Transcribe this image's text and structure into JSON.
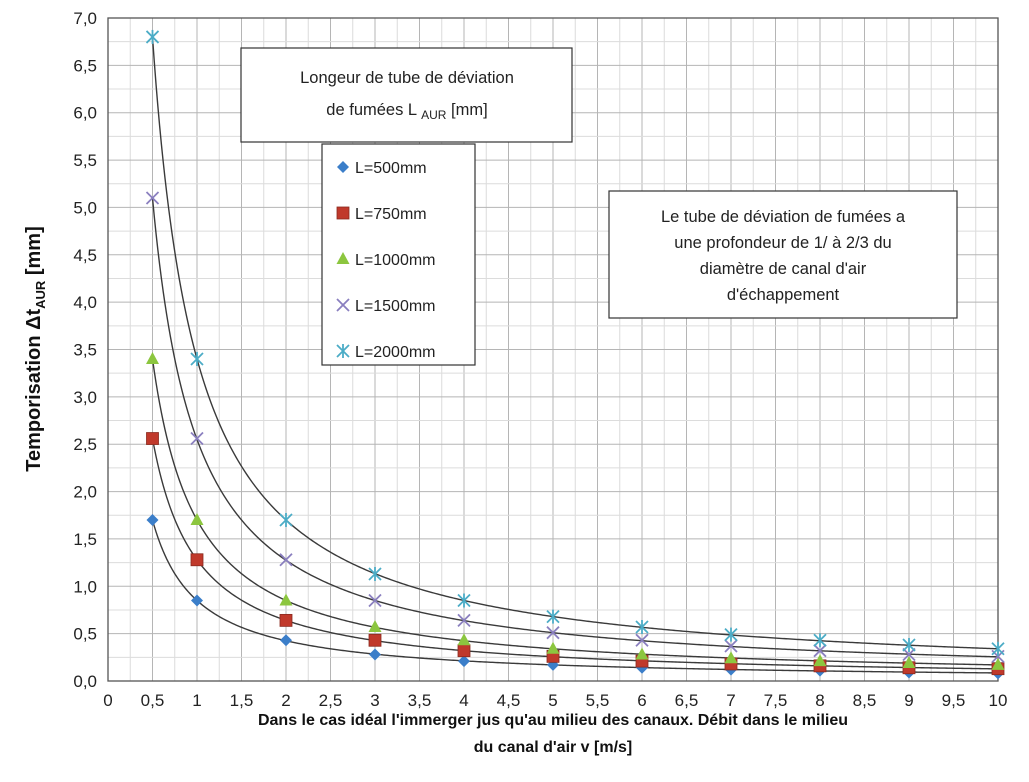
{
  "chart_data": {
    "type": "scatter",
    "xlabel_line1": "Dans le cas idéal l'immerger jus qu'au milieu des canaux. Débit dans le milieu",
    "xlabel_line2": "du canal d'air v [m/s]",
    "ylabel_main": "Temporisation  Δt",
    "ylabel_sub": "AUR",
    "ylabel_unit": " [mm]",
    "xlim": [
      0,
      10
    ],
    "ylim": [
      0,
      7
    ],
    "x_ticks": [
      "0",
      "0,5",
      "1",
      "1,5",
      "2",
      "2,5",
      "3",
      "3,5",
      "4",
      "4,5",
      "5",
      "5,5",
      "6",
      "6,5",
      "7",
      "7,5",
      "8",
      "8,5",
      "9",
      "9,5",
      "10"
    ],
    "y_ticks": [
      "0,0",
      "0,5",
      "1,0",
      "1,5",
      "2,0",
      "2,5",
      "3,0",
      "3,5",
      "4,0",
      "4,5",
      "5,0",
      "5,5",
      "6,0",
      "6,5",
      "7,0"
    ],
    "grid": true,
    "legend_title_line1": "Longeur de tube de déviation",
    "legend_title_line2": "de fumées L",
    "legend_title_sub": "AUR",
    "legend_title_unit": " [mm]",
    "annotation_lines": [
      "Le tube de déviation de fumées a",
      "une profondeur de 1/ à 2/3 du",
      "diamètre de canal d'air",
      "d'échappement"
    ],
    "x": [
      0.5,
      1,
      2,
      3,
      4,
      5,
      6,
      7,
      8,
      9,
      10
    ],
    "series": [
      {
        "name": "L=500mm",
        "marker": "diamond",
        "color": "#3b7ec9",
        "values": [
          1.7,
          0.85,
          0.43,
          0.28,
          0.21,
          0.17,
          0.14,
          0.12,
          0.11,
          0.09,
          0.08
        ]
      },
      {
        "name": "L=750mm",
        "marker": "square",
        "color": "#c0392b",
        "values": [
          2.56,
          1.28,
          0.64,
          0.43,
          0.32,
          0.26,
          0.21,
          0.18,
          0.16,
          0.14,
          0.13
        ]
      },
      {
        "name": "L=1000mm",
        "marker": "triangle",
        "color": "#8cc63f",
        "values": [
          3.4,
          1.7,
          0.85,
          0.57,
          0.43,
          0.34,
          0.28,
          0.24,
          0.21,
          0.19,
          0.17
        ]
      },
      {
        "name": "L=1500mm",
        "marker": "x",
        "color": "#8a7fbf",
        "values": [
          5.1,
          2.56,
          1.28,
          0.85,
          0.64,
          0.51,
          0.43,
          0.37,
          0.32,
          0.28,
          0.26
        ]
      },
      {
        "name": "L=2000mm",
        "marker": "star",
        "color": "#4bacc6",
        "values": [
          6.8,
          3.4,
          1.7,
          1.13,
          0.85,
          0.68,
          0.57,
          0.49,
          0.43,
          0.38,
          0.34
        ]
      }
    ]
  }
}
